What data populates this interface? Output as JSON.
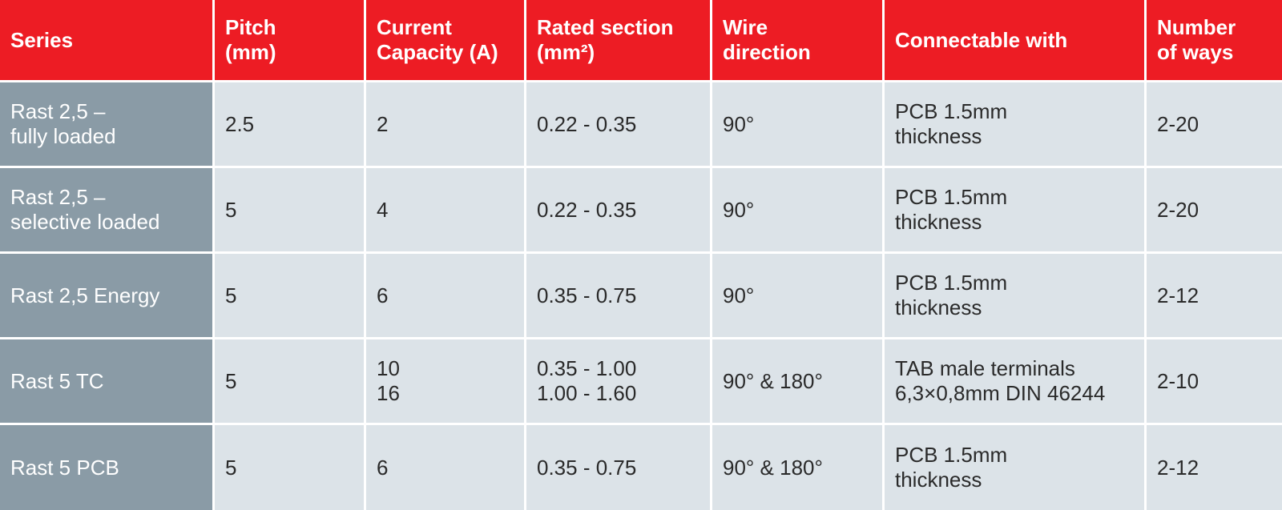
{
  "table": {
    "header": [
      [
        "Series"
      ],
      [
        "Pitch",
        "(mm)"
      ],
      [
        "Current",
        "Capacity (A)"
      ],
      [
        "Rated section",
        "(mm²)"
      ],
      [
        "Wire",
        "direction"
      ],
      [
        "Connectable with"
      ],
      [
        "Number",
        "of ways"
      ]
    ],
    "rows": [
      [
        [
          "Rast 2,5 –",
          "fully loaded"
        ],
        [
          "2.5"
        ],
        [
          "2"
        ],
        [
          "0.22 - 0.35"
        ],
        [
          "90°"
        ],
        [
          "PCB 1.5mm",
          "thickness"
        ],
        [
          "2-20"
        ]
      ],
      [
        [
          "Rast 2,5 –",
          "selective loaded"
        ],
        [
          "5"
        ],
        [
          "4"
        ],
        [
          "0.22 - 0.35"
        ],
        [
          "90°"
        ],
        [
          "PCB 1.5mm",
          "thickness"
        ],
        [
          "2-20"
        ]
      ],
      [
        [
          "Rast 2,5 Energy"
        ],
        [
          "5"
        ],
        [
          "6"
        ],
        [
          "0.35 - 0.75"
        ],
        [
          "90°"
        ],
        [
          "PCB 1.5mm",
          "thickness"
        ],
        [
          "2-12"
        ]
      ],
      [
        [
          "Rast 5 TC"
        ],
        [
          "5"
        ],
        [
          "10",
          "16"
        ],
        [
          "0.35 - 1.00",
          "1.00 - 1.60"
        ],
        [
          "90° & 180°"
        ],
        [
          "TAB male terminals",
          "6,3×0,8mm DIN 46244"
        ],
        [
          "2-10"
        ]
      ],
      [
        [
          "Rast 5 PCB"
        ],
        [
          "5"
        ],
        [
          "6"
        ],
        [
          "0.35 - 0.75"
        ],
        [
          "90° & 180°"
        ],
        [
          "PCB 1.5mm",
          "thickness"
        ],
        [
          "2-12"
        ]
      ]
    ]
  }
}
